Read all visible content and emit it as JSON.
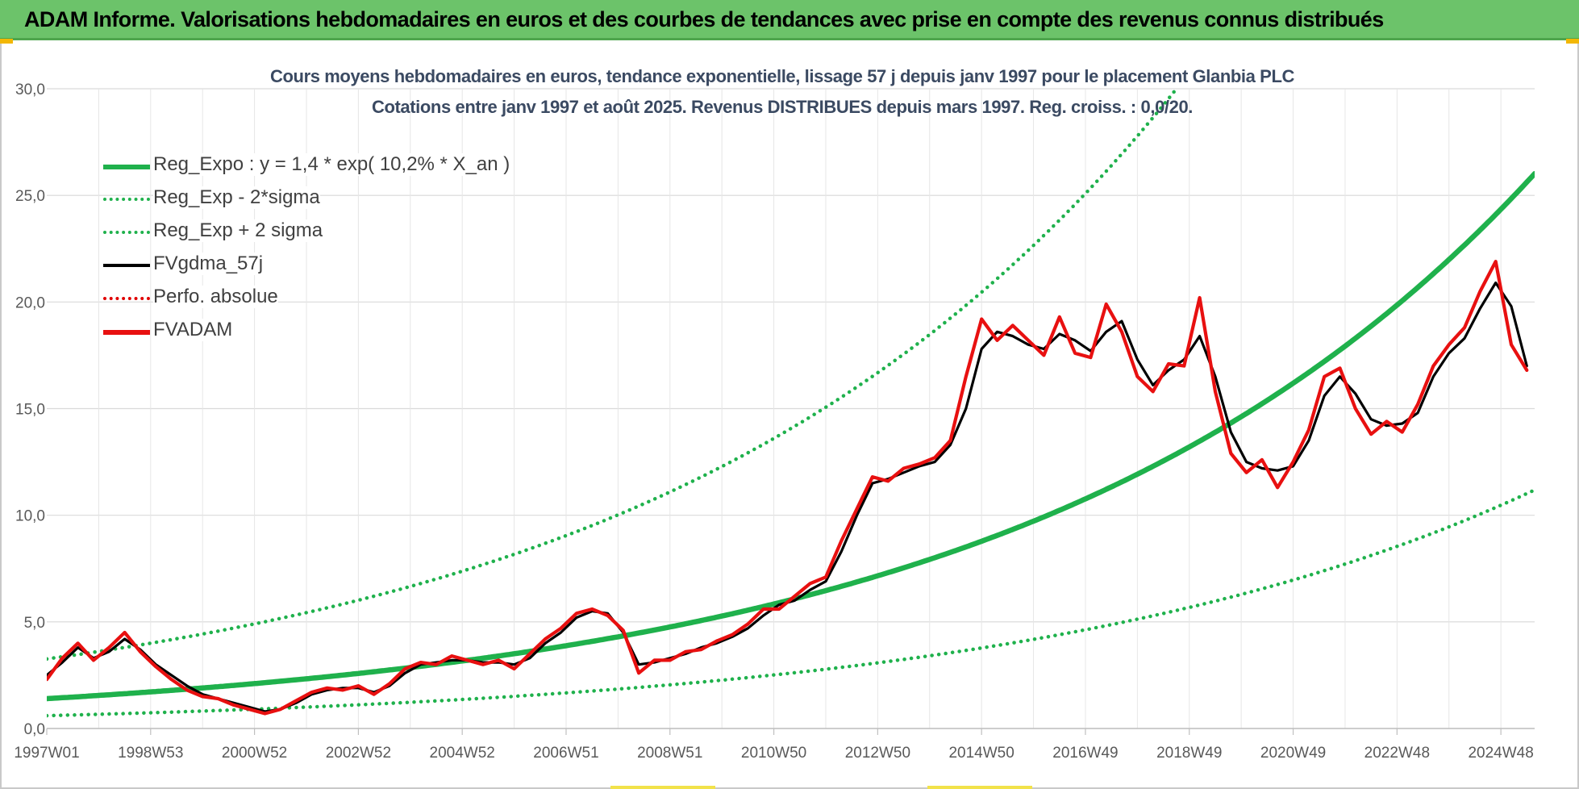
{
  "banner": {
    "title": "ADAM Informe. Valorisations hebdomadaires en euros et des courbes de tendances avec prise en compte des revenus connus distribués",
    "background": "#6cc36a"
  },
  "chart_data": {
    "type": "line",
    "title": "Cours moyens hebdomadaires en euros, tendance exponentielle, lissage 57 j depuis janv 1997 pour le placement Glanbia PLC",
    "subtitle": "Cotations entre janv 1997 et août 2025.  Revenus DISTRIBUES depuis mars 1997. Reg. croiss. : 0,0/20.",
    "xlabel": "",
    "ylabel": "",
    "xlim": [
      1997.0,
      2025.65
    ],
    "ylim": [
      0,
      30
    ],
    "grid": true,
    "legend_position": "top-left",
    "y_ticks": [
      "0,0",
      "5,0",
      "10,0",
      "15,0",
      "20,0",
      "25,0",
      "30,0"
    ],
    "x_tick_labels": [
      "1997W01",
      "1998W53",
      "2000W52",
      "2002W52",
      "2004W52",
      "2006W51",
      "2008W51",
      "2010W50",
      "2012W50",
      "2014W50",
      "2016W49",
      "2018W49",
      "2020W49",
      "2022W48",
      "2024W48"
    ],
    "x_tick_years": [
      1997.0,
      1999.0,
      2001.0,
      2003.0,
      2005.0,
      2007.0,
      2009.0,
      2011.0,
      2013.0,
      2015.0,
      2017.0,
      2019.0,
      2021.0,
      2023.0,
      2025.0
    ],
    "regression": {
      "a": 1.4,
      "rate": 0.102,
      "x0": 1997.0,
      "sigma_factor_plus": 2.33,
      "sigma_factor_minus": 0.43
    },
    "series": [
      {
        "name": "Reg_Expo : y = 1,4 * exp( 10,2% *  X_an )",
        "color": "#1fb14c",
        "style": "solid-thick",
        "kind": "reg"
      },
      {
        "name": "Reg_Exp - 2*sigma",
        "color": "#1fb14c",
        "style": "dotted",
        "kind": "reg_minus"
      },
      {
        "name": "Reg_Exp + 2 sigma",
        "color": "#1fb14c",
        "style": "dotted",
        "kind": "reg_plus"
      },
      {
        "name": "FVgdma_57j",
        "color": "#000000",
        "style": "solid",
        "kind": "data",
        "x": [
          1997.0,
          1997.3,
          1997.6,
          1997.9,
          1998.2,
          1998.5,
          1998.8,
          1999.1,
          1999.4,
          1999.7,
          2000.0,
          2000.3,
          2000.6,
          2000.9,
          2001.2,
          2001.5,
          2001.8,
          2002.1,
          2002.4,
          2002.7,
          2003.0,
          2003.3,
          2003.6,
          2003.9,
          2004.2,
          2004.5,
          2004.8,
          2005.1,
          2005.4,
          2005.7,
          2006.0,
          2006.3,
          2006.6,
          2006.9,
          2007.2,
          2007.5,
          2007.8,
          2008.1,
          2008.4,
          2008.7,
          2009.0,
          2009.3,
          2009.6,
          2009.9,
          2010.2,
          2010.5,
          2010.8,
          2011.1,
          2011.4,
          2011.7,
          2012.0,
          2012.3,
          2012.6,
          2012.9,
          2013.2,
          2013.5,
          2013.8,
          2014.1,
          2014.4,
          2014.7,
          2015.0,
          2015.3,
          2015.6,
          2015.9,
          2016.2,
          2016.5,
          2016.8,
          2017.1,
          2017.4,
          2017.7,
          2018.0,
          2018.3,
          2018.6,
          2018.9,
          2019.2,
          2019.5,
          2019.8,
          2020.1,
          2020.4,
          2020.7,
          2021.0,
          2021.3,
          2021.6,
          2021.9,
          2022.2,
          2022.5,
          2022.8,
          2023.1,
          2023.4,
          2023.7,
          2024.0,
          2024.3,
          2024.6,
          2024.9,
          2025.2,
          2025.5
        ],
        "y": [
          2.5,
          3.1,
          3.8,
          3.3,
          3.6,
          4.2,
          3.7,
          3.0,
          2.5,
          2.0,
          1.6,
          1.4,
          1.2,
          1.0,
          0.8,
          0.9,
          1.2,
          1.6,
          1.8,
          1.9,
          1.9,
          1.7,
          2.0,
          2.6,
          3.0,
          3.1,
          3.2,
          3.2,
          3.1,
          3.1,
          3.0,
          3.3,
          4.0,
          4.5,
          5.2,
          5.5,
          5.4,
          4.5,
          3.0,
          3.1,
          3.3,
          3.5,
          3.8,
          4.0,
          4.3,
          4.7,
          5.3,
          5.8,
          6.0,
          6.5,
          6.9,
          8.3,
          10.0,
          11.5,
          11.7,
          12.0,
          12.3,
          12.5,
          13.3,
          15.0,
          17.8,
          18.6,
          18.4,
          18.0,
          17.8,
          18.5,
          18.2,
          17.7,
          18.6,
          19.1,
          17.3,
          16.1,
          16.8,
          17.3,
          18.4,
          16.5,
          13.9,
          12.5,
          12.2,
          12.1,
          12.3,
          13.5,
          15.6,
          16.5,
          15.7,
          14.5,
          14.2,
          14.3,
          14.8,
          16.5,
          17.6,
          18.3,
          19.7,
          20.9,
          19.8,
          17.0
        ]
      },
      {
        "name": "Perfo. absolue",
        "color": "#e00000",
        "style": "dotted",
        "kind": "none"
      },
      {
        "name": "FVADAM",
        "color": "#e81010",
        "style": "solid-thick",
        "kind": "data",
        "x": [
          1997.0,
          1997.3,
          1997.6,
          1997.9,
          1998.2,
          1998.5,
          1998.8,
          1999.1,
          1999.4,
          1999.7,
          2000.0,
          2000.3,
          2000.6,
          2000.9,
          2001.2,
          2001.5,
          2001.8,
          2002.1,
          2002.4,
          2002.7,
          2003.0,
          2003.3,
          2003.6,
          2003.9,
          2004.2,
          2004.5,
          2004.8,
          2005.1,
          2005.4,
          2005.7,
          2006.0,
          2006.3,
          2006.6,
          2006.9,
          2007.2,
          2007.5,
          2007.8,
          2008.1,
          2008.4,
          2008.7,
          2009.0,
          2009.3,
          2009.6,
          2009.9,
          2010.2,
          2010.5,
          2010.8,
          2011.1,
          2011.4,
          2011.7,
          2012.0,
          2012.3,
          2012.6,
          2012.9,
          2013.2,
          2013.5,
          2013.8,
          2014.1,
          2014.4,
          2014.7,
          2015.0,
          2015.3,
          2015.6,
          2015.9,
          2016.2,
          2016.5,
          2016.8,
          2017.1,
          2017.4,
          2017.7,
          2018.0,
          2018.3,
          2018.6,
          2018.9,
          2019.2,
          2019.5,
          2019.8,
          2020.1,
          2020.4,
          2020.7,
          2021.0,
          2021.3,
          2021.6,
          2021.9,
          2022.2,
          2022.5,
          2022.8,
          2023.1,
          2023.4,
          2023.7,
          2024.0,
          2024.3,
          2024.6,
          2024.9,
          2025.2,
          2025.5
        ],
        "y": [
          2.3,
          3.3,
          4.0,
          3.2,
          3.8,
          4.5,
          3.6,
          2.9,
          2.3,
          1.8,
          1.5,
          1.4,
          1.1,
          0.9,
          0.7,
          0.9,
          1.3,
          1.7,
          1.9,
          1.8,
          2.0,
          1.6,
          2.1,
          2.8,
          3.1,
          3.0,
          3.4,
          3.2,
          3.0,
          3.2,
          2.8,
          3.5,
          4.2,
          4.7,
          5.4,
          5.6,
          5.3,
          4.6,
          2.6,
          3.2,
          3.2,
          3.6,
          3.7,
          4.1,
          4.4,
          4.9,
          5.6,
          5.6,
          6.2,
          6.8,
          7.1,
          8.8,
          10.3,
          11.8,
          11.6,
          12.2,
          12.4,
          12.7,
          13.5,
          16.5,
          19.2,
          18.2,
          18.9,
          18.2,
          17.5,
          19.3,
          17.6,
          17.4,
          19.9,
          18.6,
          16.5,
          15.8,
          17.1,
          17.0,
          20.2,
          15.8,
          12.9,
          12.0,
          12.6,
          11.3,
          12.5,
          14.0,
          16.5,
          16.9,
          15.0,
          13.8,
          14.4,
          13.9,
          15.2,
          17.0,
          18.0,
          18.8,
          20.5,
          21.9,
          18.0,
          16.8
        ]
      }
    ]
  }
}
